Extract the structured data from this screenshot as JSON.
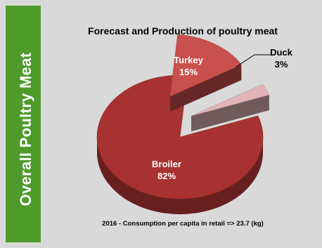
{
  "sidebar": {
    "label": "Overall Poultry Meat"
  },
  "chart_data": {
    "type": "pie",
    "title": "Forecast and Production of poultry meat",
    "categories": [
      "Broiler",
      "Turkey",
      "Duck"
    ],
    "values": [
      82,
      15,
      3
    ],
    "value_labels": [
      "82%",
      "15%",
      "3%"
    ],
    "colors": [
      "#a83232",
      "#c9504c",
      "#e2b4b8"
    ],
    "exploded": [
      "Turkey",
      "Duck"
    ],
    "legend": "none",
    "footnote": "2016 - Consumption per capita in retail => 23.7 (kg)"
  }
}
